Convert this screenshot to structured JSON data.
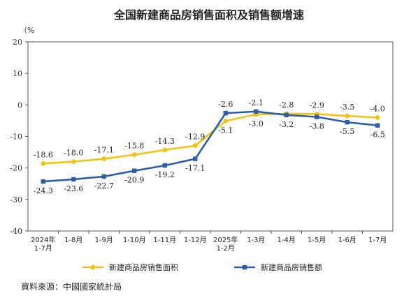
{
  "chart_data": {
    "type": "line",
    "title": "全国新建商品房销售面积及销售额增速",
    "unit_label": "（%",
    "categories": [
      [
        "2024年",
        "1-7月"
      ],
      [
        "1-8月"
      ],
      [
        "1-9月"
      ],
      [
        "1-10月"
      ],
      [
        "1-11月"
      ],
      [
        "1-12月"
      ],
      [
        "2025年",
        "1-2月"
      ],
      [
        "1-3月"
      ],
      [
        "1-4月"
      ],
      [
        "1-5月"
      ],
      [
        "1-6月"
      ],
      [
        "1-7月"
      ]
    ],
    "series": [
      {
        "name": "新建商品房销售面积",
        "color": "#f2c313",
        "values": [
          -18.6,
          -18.0,
          -17.1,
          -15.8,
          -14.3,
          -12.9,
          -5.1,
          -3.0,
          -2.8,
          -2.9,
          -3.5,
          -4.0
        ],
        "label_text": [
          "-18.6",
          "-18.0",
          "-17.1",
          "-15.8",
          "-14.3",
          "-12.9",
          "-5.1",
          "-3.0",
          "-2.8",
          "-2.9",
          "-3.5",
          "-4.0"
        ]
      },
      {
        "name": "新建商品房销售额",
        "color": "#2f5ea8",
        "values": [
          -24.3,
          -23.6,
          -22.7,
          -20.9,
          -19.2,
          -17.1,
          -2.6,
          -2.1,
          -3.2,
          -3.8,
          -5.5,
          -6.5
        ],
        "label_text": [
          "-24.3",
          "-23.6",
          "-22.7",
          "-20.9",
          "-19.2",
          "-17.1",
          "-2.6",
          "-2.1",
          "-3.2",
          "-3.8",
          "-5.5",
          "-6.5"
        ]
      }
    ],
    "ylim": [
      -40,
      20
    ],
    "yticks": [
      20,
      10,
      0,
      -10,
      -20,
      -30,
      -40
    ],
    "ytick_labels": [
      "20",
      "10",
      "0",
      "-10",
      "-20",
      "-30",
      "-40"
    ],
    "grid": false,
    "legend_position": "bottom"
  },
  "source": "資料來源：中國國家統計局"
}
